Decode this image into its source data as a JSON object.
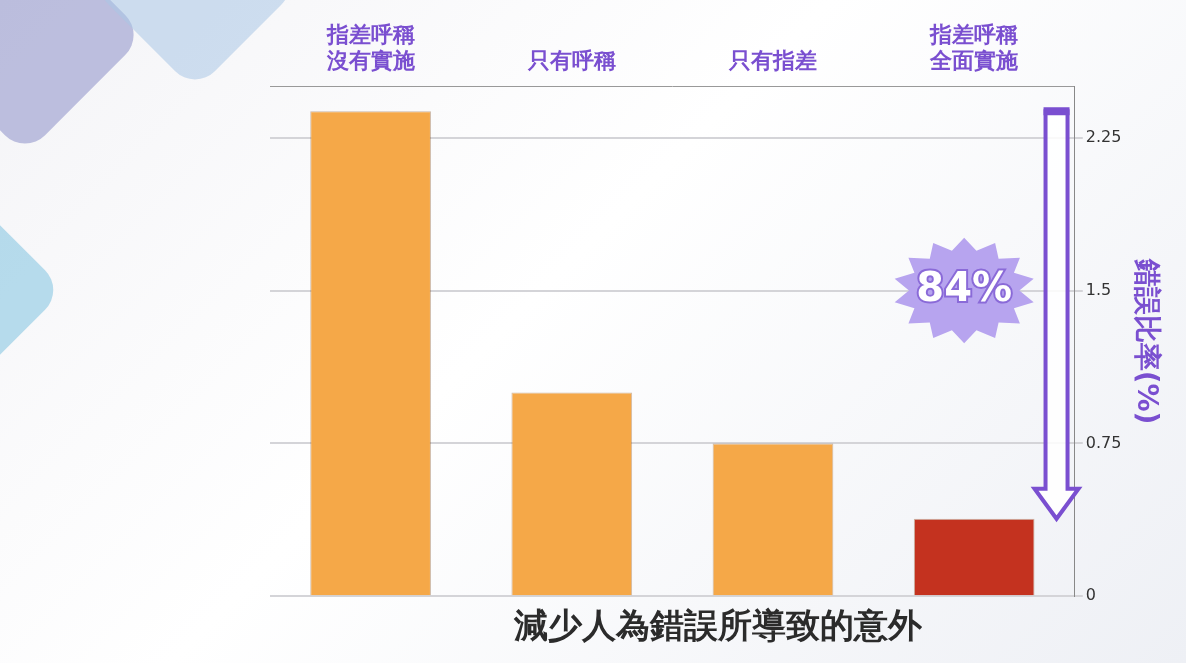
{
  "chart_data": {
    "type": "bar",
    "subtitle": "減少人為錯誤所導致的意外",
    "categories": [
      "指差呼稱沒有實施",
      "只有呼稱",
      "只有指差",
      "指差呼稱全面實施"
    ],
    "values": [
      2.38,
      1.0,
      0.75,
      0.38
    ],
    "colors": [
      "#f5a848",
      "#f5a848",
      "#f5a848",
      "#c4321f"
    ],
    "y_label": "錯誤比率(%)",
    "ylim": [
      0,
      2.5
    ],
    "yticks": [
      0,
      0.75,
      1.5,
      2.25
    ],
    "grid": true,
    "annotations": [
      "84%"
    ]
  }
}
